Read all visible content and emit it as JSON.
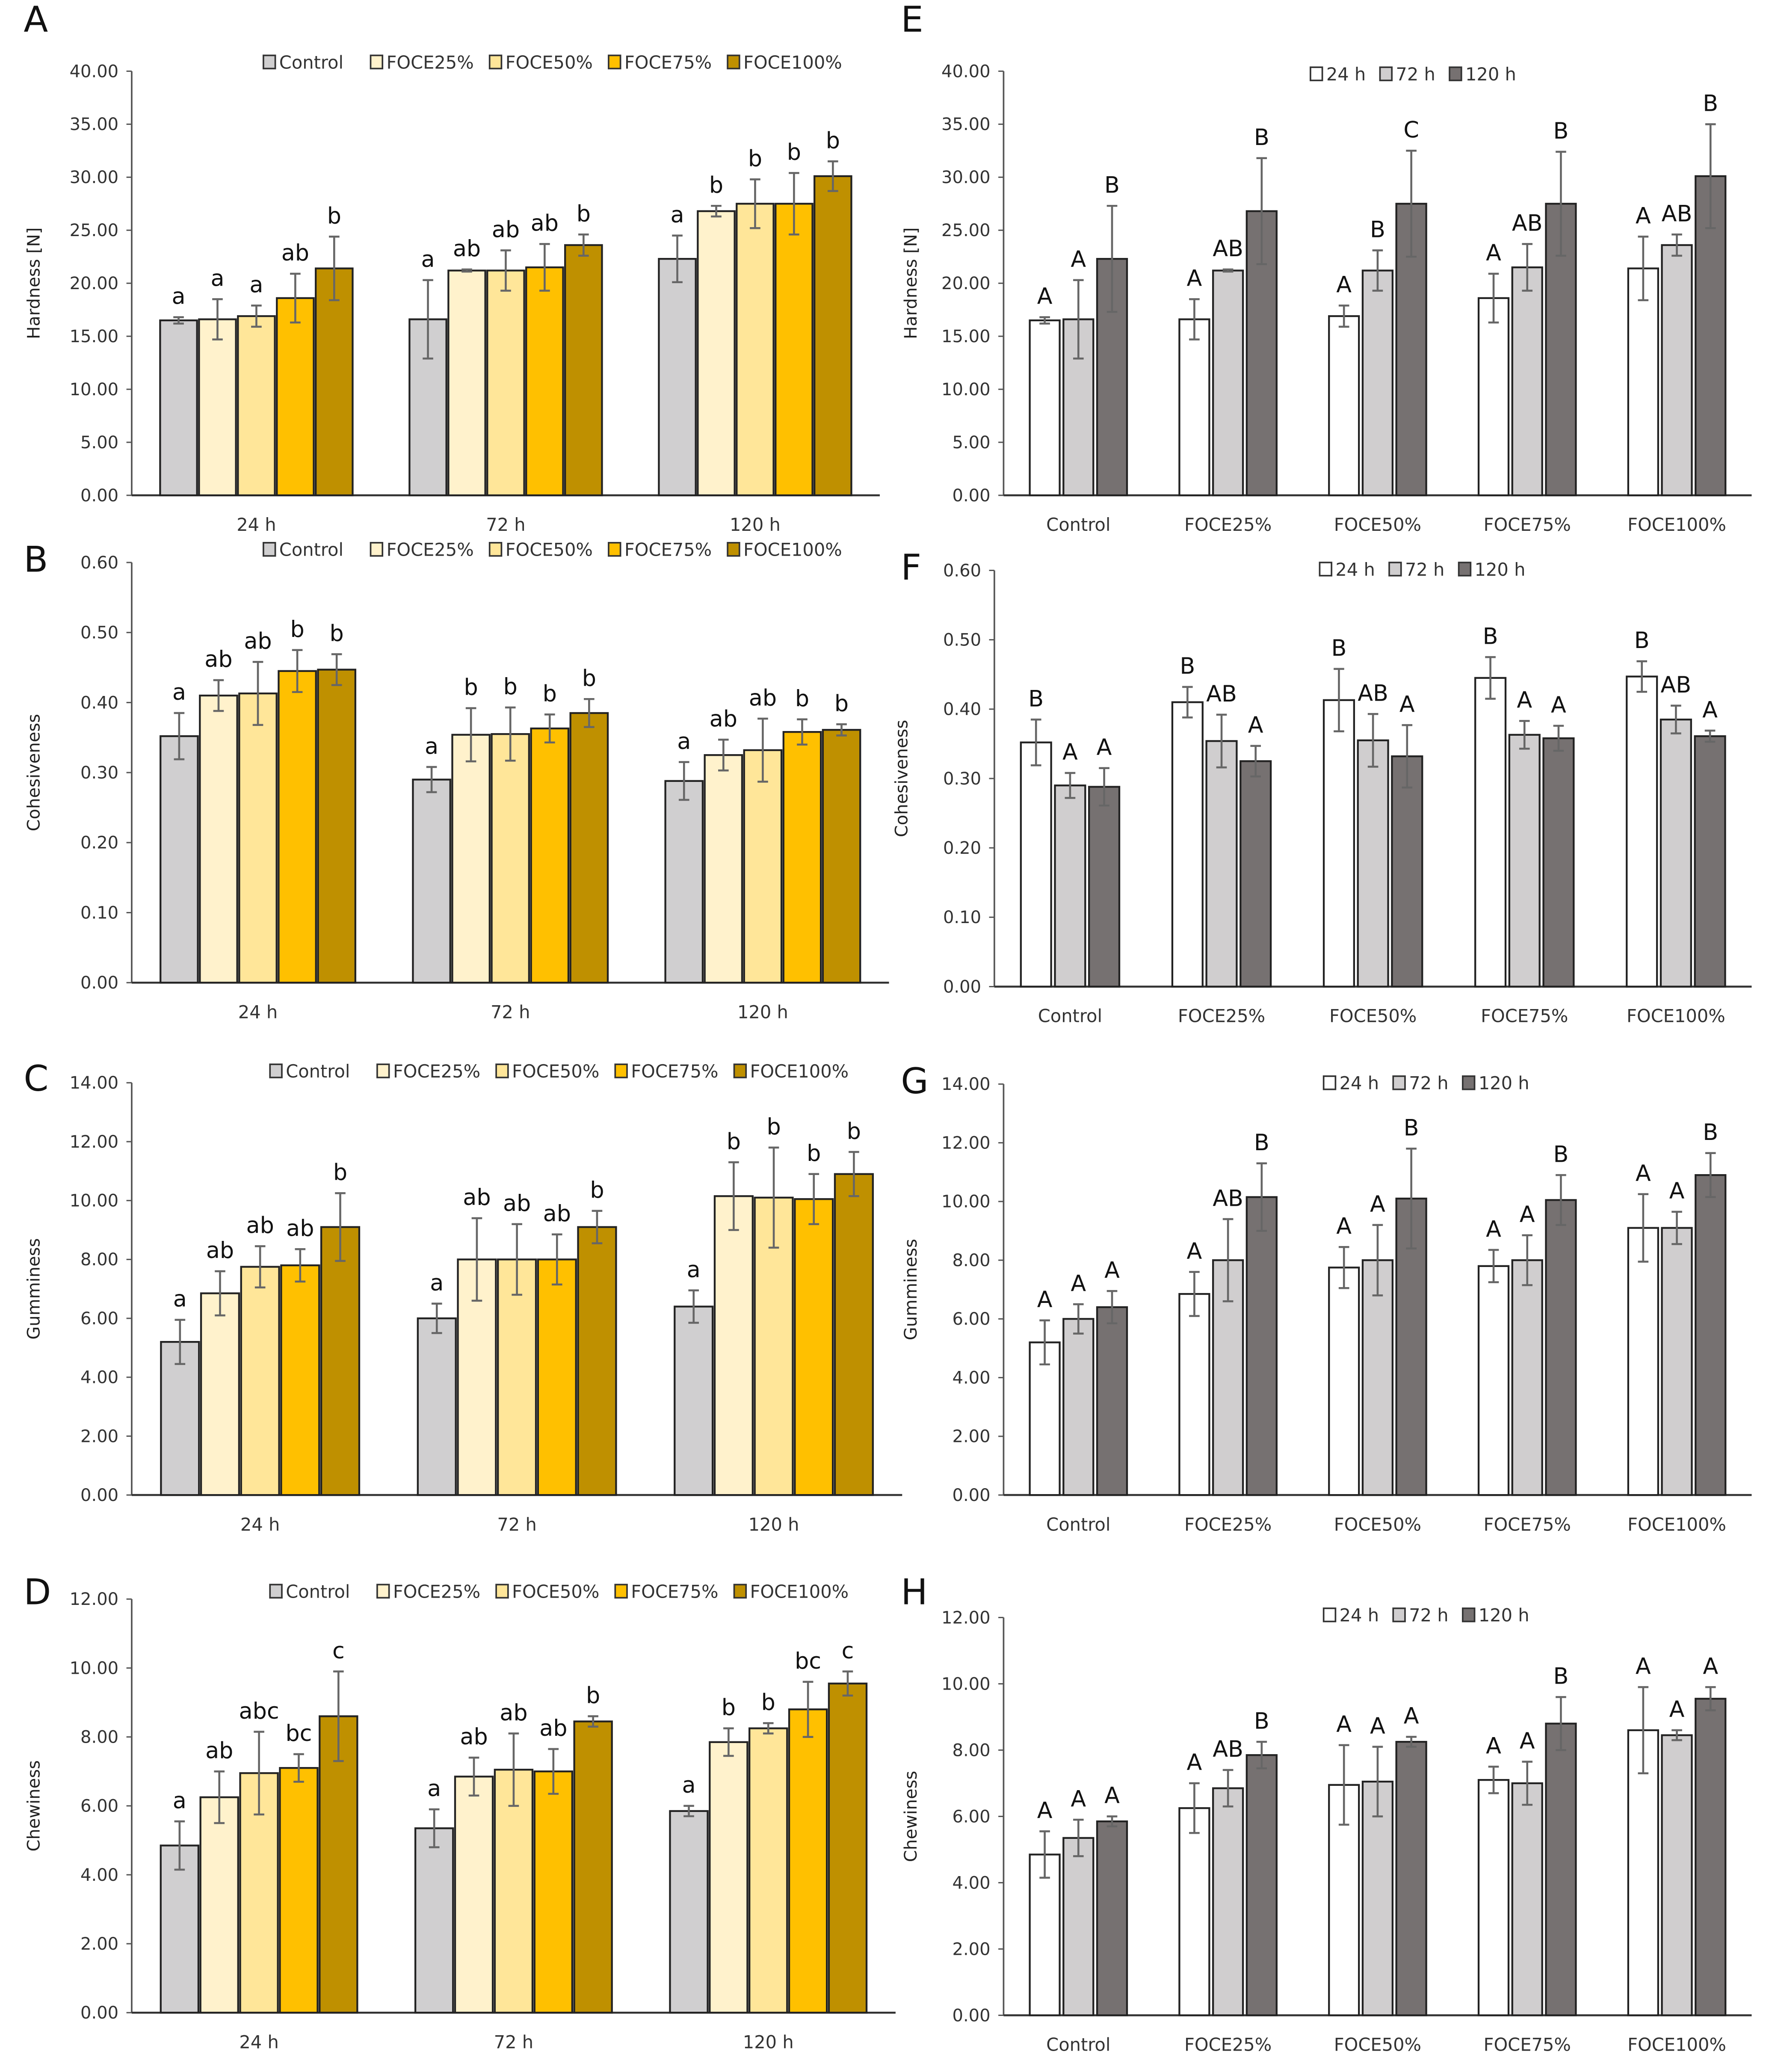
{
  "colors": {
    "Control": "#d0cfd0",
    "FOCE25%": "#fff2cc",
    "FOCE50%": "#ffe699",
    "FOCE75%": "#ffc000",
    "FOCE100%": "#bf9000",
    "24 h": "#ffffff",
    "72 h": "#d0cecf",
    "120 h": "#767171",
    "error": "#666666",
    "outline": "#222222"
  },
  "chart_data": [
    {
      "panel": "A",
      "type": "bar",
      "ylabel": "Hardness [N]",
      "ylim": [
        0,
        40
      ],
      "yticks": [
        "0.00",
        "5.00",
        "10.00",
        "15.00",
        "20.00",
        "25.00",
        "30.00",
        "35.00",
        "40.00"
      ],
      "categories": [
        "24 h",
        "72 h",
        "120 h"
      ],
      "legend": "top",
      "series": [
        {
          "name": "Control",
          "values": [
            16.5,
            16.6,
            22.3
          ],
          "errors": [
            0.3,
            3.7,
            2.2
          ],
          "letters": [
            "a",
            "a",
            "a"
          ]
        },
        {
          "name": "FOCE25%",
          "values": [
            16.6,
            21.2,
            26.8
          ],
          "errors": [
            1.9,
            0.1,
            0.5
          ],
          "letters": [
            "a",
            "ab",
            "b"
          ]
        },
        {
          "name": "FOCE50%",
          "values": [
            16.9,
            21.2,
            27.5
          ],
          "errors": [
            1.0,
            1.9,
            2.3
          ],
          "letters": [
            "a",
            "ab",
            "b"
          ]
        },
        {
          "name": "FOCE75%",
          "values": [
            18.6,
            21.5,
            27.5
          ],
          "errors": [
            2.3,
            2.2,
            2.9
          ],
          "letters": [
            "ab",
            "ab",
            "b"
          ]
        },
        {
          "name": "FOCE100%",
          "values": [
            21.4,
            23.6,
            30.1
          ],
          "errors": [
            3.0,
            1.0,
            1.4
          ],
          "letters": [
            "b",
            "b",
            "b"
          ]
        }
      ]
    },
    {
      "panel": "B",
      "type": "bar",
      "ylabel": "Cohesiveness",
      "ylim": [
        0,
        0.6
      ],
      "yticks": [
        "0.00",
        "0.10",
        "0.20",
        "0.30",
        "0.40",
        "0.50",
        "0.60"
      ],
      "categories": [
        "24 h",
        "72 h",
        "120 h"
      ],
      "legend": "top",
      "series": [
        {
          "name": "Control",
          "values": [
            0.352,
            0.29,
            0.288
          ],
          "errors": [
            0.033,
            0.018,
            0.027
          ],
          "letters": [
            "a",
            "a",
            "a"
          ]
        },
        {
          "name": "FOCE25%",
          "values": [
            0.41,
            0.354,
            0.325
          ],
          "errors": [
            0.022,
            0.038,
            0.022
          ],
          "letters": [
            "ab",
            "b",
            "ab"
          ]
        },
        {
          "name": "FOCE50%",
          "values": [
            0.413,
            0.355,
            0.332
          ],
          "errors": [
            0.045,
            0.038,
            0.045
          ],
          "letters": [
            "ab",
            "b",
            "ab"
          ]
        },
        {
          "name": "FOCE75%",
          "values": [
            0.445,
            0.363,
            0.358
          ],
          "errors": [
            0.03,
            0.02,
            0.018
          ],
          "letters": [
            "b",
            "b",
            "b"
          ]
        },
        {
          "name": "FOCE100%",
          "values": [
            0.447,
            0.385,
            0.361
          ],
          "errors": [
            0.022,
            0.02,
            0.008
          ],
          "letters": [
            "b",
            "b",
            "b"
          ]
        }
      ]
    },
    {
      "panel": "C",
      "type": "bar",
      "ylabel": "Gumminess",
      "ylim": [
        0,
        14
      ],
      "yticks": [
        "0.00",
        "2.00",
        "4.00",
        "6.00",
        "8.00",
        "10.00",
        "12.00",
        "14.00"
      ],
      "categories": [
        "24 h",
        "72 h",
        "120 h"
      ],
      "legend": "top",
      "series": [
        {
          "name": "Control",
          "values": [
            5.2,
            6.0,
            6.4
          ],
          "errors": [
            0.75,
            0.5,
            0.55
          ],
          "letters": [
            "a",
            "a",
            "a"
          ]
        },
        {
          "name": "FOCE25%",
          "values": [
            6.85,
            8.0,
            10.15
          ],
          "errors": [
            0.75,
            1.4,
            1.15
          ],
          "letters": [
            "ab",
            "ab",
            "b"
          ]
        },
        {
          "name": "FOCE50%",
          "values": [
            7.75,
            8.0,
            10.1
          ],
          "errors": [
            0.7,
            1.2,
            1.7
          ],
          "letters": [
            "ab",
            "ab",
            "b"
          ]
        },
        {
          "name": "FOCE75%",
          "values": [
            7.8,
            8.0,
            10.05
          ],
          "errors": [
            0.55,
            0.85,
            0.85
          ],
          "letters": [
            "ab",
            "ab",
            "b"
          ]
        },
        {
          "name": "FOCE100%",
          "values": [
            9.1,
            9.1,
            10.9
          ],
          "errors": [
            1.15,
            0.55,
            0.75
          ],
          "letters": [
            "b",
            "b",
            "b"
          ]
        }
      ]
    },
    {
      "panel": "D",
      "type": "bar",
      "ylabel": "Chewiness",
      "ylim": [
        0,
        12
      ],
      "yticks": [
        "0.00",
        "2.00",
        "4.00",
        "6.00",
        "8.00",
        "10.00",
        "12.00"
      ],
      "categories": [
        "24 h",
        "72 h",
        "120 h"
      ],
      "legend": "top",
      "series": [
        {
          "name": "Control",
          "values": [
            4.85,
            5.35,
            5.85
          ],
          "errors": [
            0.7,
            0.55,
            0.15
          ],
          "letters": [
            "a",
            "a",
            "a"
          ]
        },
        {
          "name": "FOCE25%",
          "values": [
            6.25,
            6.85,
            7.85
          ],
          "errors": [
            0.75,
            0.55,
            0.4
          ],
          "letters": [
            "ab",
            "ab",
            "b"
          ]
        },
        {
          "name": "FOCE50%",
          "values": [
            6.95,
            7.05,
            8.25
          ],
          "errors": [
            1.2,
            1.05,
            0.15
          ],
          "letters": [
            "abc",
            "ab",
            "b"
          ]
        },
        {
          "name": "FOCE75%",
          "values": [
            7.1,
            7.0,
            8.8
          ],
          "errors": [
            0.4,
            0.65,
            0.8
          ],
          "letters": [
            "bc",
            "ab",
            "bc"
          ]
        },
        {
          "name": "FOCE100%",
          "values": [
            8.6,
            8.45,
            9.55
          ],
          "errors": [
            1.3,
            0.15,
            0.35
          ],
          "letters": [
            "c",
            "b",
            "c"
          ]
        }
      ]
    },
    {
      "panel": "E",
      "type": "bar",
      "ylabel": "Hardness [N]",
      "ylim": [
        0,
        40
      ],
      "yticks": [
        "0.00",
        "5.00",
        "10.00",
        "15.00",
        "20.00",
        "25.00",
        "30.00",
        "35.00",
        "40.00"
      ],
      "categories": [
        "Control",
        "FOCE25%",
        "FOCE50%",
        "FOCE75%",
        "FOCE100%"
      ],
      "legend": "top",
      "series": [
        {
          "name": "24 h",
          "values": [
            16.5,
            16.6,
            16.9,
            18.6,
            21.4
          ],
          "errors": [
            0.3,
            1.9,
            1.0,
            2.3,
            3.0
          ],
          "letters": [
            "A",
            "A",
            "A",
            "A",
            "A"
          ]
        },
        {
          "name": "72 h",
          "values": [
            16.6,
            21.2,
            21.2,
            21.5,
            23.6
          ],
          "errors": [
            3.7,
            0.1,
            1.9,
            2.2,
            1.0
          ],
          "letters": [
            "A",
            "AB",
            "B",
            "AB",
            "AB"
          ]
        },
        {
          "name": "120 h",
          "values": [
            22.3,
            26.8,
            27.5,
            27.5,
            30.1
          ],
          "errors": [
            5.0,
            5.0,
            5.0,
            4.9,
            4.9
          ],
          "letters": [
            "B",
            "B",
            "C",
            "B",
            "B"
          ]
        }
      ]
    },
    {
      "panel": "F",
      "type": "bar",
      "ylabel": "Cohesiveness",
      "ylim": [
        0,
        0.6
      ],
      "yticks": [
        "0.00",
        "0.10",
        "0.20",
        "0.30",
        "0.40",
        "0.50",
        "0.60"
      ],
      "categories": [
        "Control",
        "FOCE25%",
        "FOCE50%",
        "FOCE75%",
        "FOCE100%"
      ],
      "legend": "top",
      "series": [
        {
          "name": "24 h",
          "values": [
            0.352,
            0.41,
            0.413,
            0.445,
            0.447
          ],
          "errors": [
            0.033,
            0.022,
            0.045,
            0.03,
            0.022
          ],
          "letters": [
            "B",
            "B",
            "B",
            "B",
            "B"
          ]
        },
        {
          "name": "72 h",
          "values": [
            0.29,
            0.354,
            0.355,
            0.363,
            0.385
          ],
          "errors": [
            0.018,
            0.038,
            0.038,
            0.02,
            0.02
          ],
          "letters": [
            "A",
            "AB",
            "AB",
            "A",
            "AB"
          ]
        },
        {
          "name": "120 h",
          "values": [
            0.288,
            0.325,
            0.332,
            0.358,
            0.361
          ],
          "errors": [
            0.027,
            0.022,
            0.045,
            0.018,
            0.008
          ],
          "letters": [
            "A",
            "A",
            "A",
            "A",
            "A"
          ]
        }
      ]
    },
    {
      "panel": "G",
      "type": "bar",
      "ylabel": "Gumminess",
      "ylim": [
        0,
        14
      ],
      "yticks": [
        "0.00",
        "2.00",
        "4.00",
        "6.00",
        "8.00",
        "10.00",
        "12.00",
        "14.00"
      ],
      "categories": [
        "Control",
        "FOCE25%",
        "FOCE50%",
        "FOCE75%",
        "FOCE100%"
      ],
      "legend": "top",
      "series": [
        {
          "name": "24 h",
          "values": [
            5.2,
            6.85,
            7.75,
            7.8,
            9.1
          ],
          "errors": [
            0.75,
            0.75,
            0.7,
            0.55,
            1.15
          ],
          "letters": [
            "A",
            "A",
            "A",
            "A",
            "A"
          ]
        },
        {
          "name": "72 h",
          "values": [
            6.0,
            8.0,
            8.0,
            8.0,
            9.1
          ],
          "errors": [
            0.5,
            1.4,
            1.2,
            0.85,
            0.55
          ],
          "letters": [
            "A",
            "AB",
            "A",
            "A",
            "A"
          ]
        },
        {
          "name": "120 h",
          "values": [
            6.4,
            10.15,
            10.1,
            10.05,
            10.9
          ],
          "errors": [
            0.55,
            1.15,
            1.7,
            0.85,
            0.75
          ],
          "letters": [
            "A",
            "B",
            "B",
            "B",
            "B"
          ]
        }
      ]
    },
    {
      "panel": "H",
      "type": "bar",
      "ylabel": "Chewiness",
      "ylim": [
        0,
        12
      ],
      "yticks": [
        "0.00",
        "2.00",
        "4.00",
        "6.00",
        "8.00",
        "10.00",
        "12.00"
      ],
      "categories": [
        "Control",
        "FOCE25%",
        "FOCE50%",
        "FOCE75%",
        "FOCE100%"
      ],
      "legend": "top",
      "series": [
        {
          "name": "24 h",
          "values": [
            4.85,
            6.25,
            6.95,
            7.1,
            8.6
          ],
          "errors": [
            0.7,
            0.75,
            1.2,
            0.4,
            1.3
          ],
          "letters": [
            "A",
            "A",
            "A",
            "A",
            "A"
          ]
        },
        {
          "name": "72 h",
          "values": [
            5.35,
            6.85,
            7.05,
            7.0,
            8.45
          ],
          "errors": [
            0.55,
            0.55,
            1.05,
            0.65,
            0.15
          ],
          "letters": [
            "A",
            "AB",
            "A",
            "A",
            "A"
          ]
        },
        {
          "name": "120 h",
          "values": [
            5.85,
            7.85,
            8.25,
            8.8,
            9.55
          ],
          "errors": [
            0.15,
            0.4,
            0.15,
            0.8,
            0.35
          ],
          "letters": [
            "A",
            "B",
            "A",
            "B",
            "A"
          ]
        }
      ]
    }
  ]
}
